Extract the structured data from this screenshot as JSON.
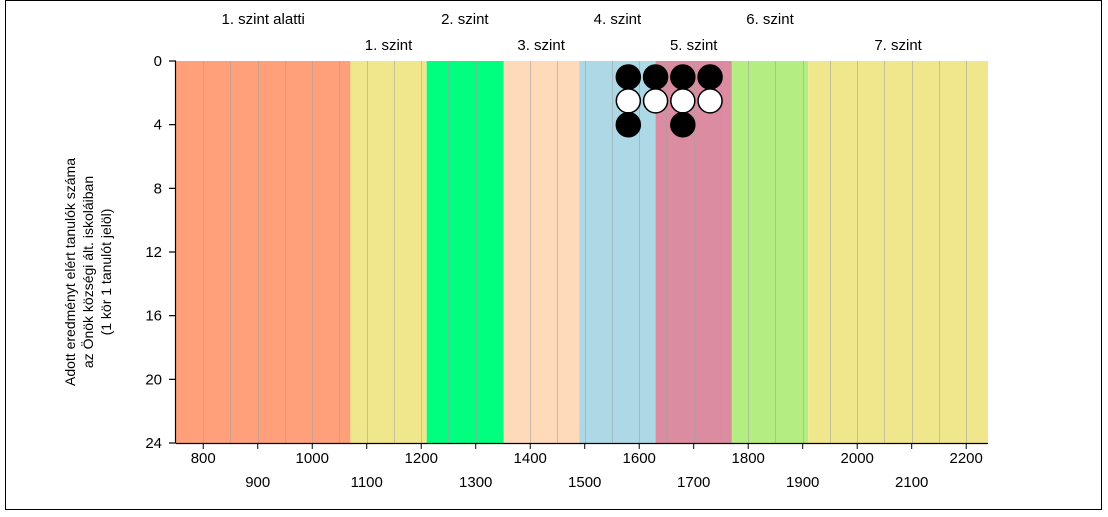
{
  "chart_data": {
    "type": "scatter",
    "title": "",
    "ylabel_lines": [
      "Adott eredményt elért tanulók száma",
      "az Önök községi ált. iskoláiban",
      "(1 kör 1 tanulót jelöl)"
    ],
    "xlabel": "",
    "xlim": [
      750,
      2240
    ],
    "ylim": [
      0,
      24
    ],
    "y_inverted": true,
    "y_ticks": [
      0,
      4,
      8,
      12,
      16,
      20,
      24
    ],
    "x_ticks_row1": [
      800,
      1000,
      1200,
      1400,
      1600,
      1800,
      2000,
      2200
    ],
    "x_ticks_row2": [
      900,
      1100,
      1300,
      1500,
      1700,
      1900,
      2100
    ],
    "vertical_grid_step": 50,
    "levels": [
      {
        "label": "1. szint alatti",
        "from": 750,
        "to": 1070,
        "color": "#ffa07a",
        "row": 1
      },
      {
        "label": "1. szint",
        "from": 1070,
        "to": 1210,
        "color": "#f0e68c",
        "row": 2
      },
      {
        "label": "2. szint",
        "from": 1210,
        "to": 1350,
        "color": "#00ff7f",
        "row": 1
      },
      {
        "label": "3. szint",
        "from": 1350,
        "to": 1490,
        "color": "#ffdab9",
        "row": 2
      },
      {
        "label": "4. szint",
        "from": 1490,
        "to": 1630,
        "color": "#add8e6",
        "row": 1
      },
      {
        "label": "5. szint",
        "from": 1630,
        "to": 1770,
        "color": "#db8ca0",
        "row": 2
      },
      {
        "label": "6. szint",
        "from": 1770,
        "to": 1910,
        "color": "#b4ee82",
        "row": 1
      },
      {
        "label": "7. szint",
        "from": 1910,
        "to": 2240,
        "color": "#f0e68c",
        "row": 2
      }
    ],
    "points": [
      {
        "x": 1580,
        "count": 3,
        "colors": [
          "black",
          "white",
          "black"
        ]
      },
      {
        "x": 1630,
        "count": 2,
        "colors": [
          "black",
          "white"
        ]
      },
      {
        "x": 1680,
        "count": 3,
        "colors": [
          "black",
          "white",
          "black"
        ]
      },
      {
        "x": 1730,
        "count": 2,
        "colors": [
          "black",
          "white"
        ]
      }
    ]
  }
}
